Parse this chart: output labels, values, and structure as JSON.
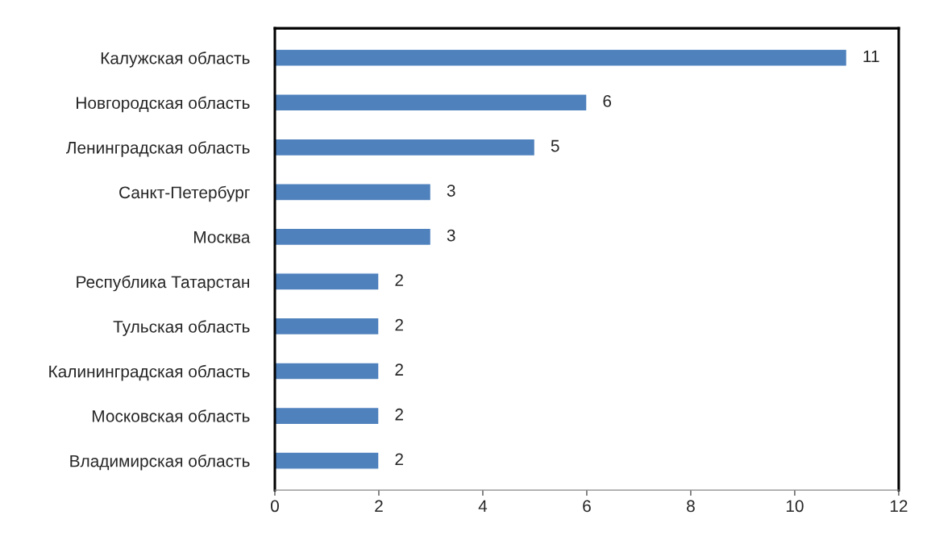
{
  "chart_data": {
    "type": "bar",
    "orientation": "horizontal",
    "categories": [
      "Калужская область",
      "Новгородская область",
      "Ленинградская область",
      "Санкт-Петербург",
      "Москва",
      "Республика Татарстан",
      "Тульская область",
      "Калининградская область",
      "Московская область",
      "Владимирская область"
    ],
    "values": [
      11,
      6,
      5,
      3,
      3,
      2,
      2,
      2,
      2,
      2
    ],
    "color": "#4f81bd",
    "xlim": [
      0,
      12
    ],
    "xticks": [
      0,
      2,
      4,
      6,
      8,
      10,
      12
    ],
    "data_labels": true,
    "grid": false,
    "legend": false
  }
}
